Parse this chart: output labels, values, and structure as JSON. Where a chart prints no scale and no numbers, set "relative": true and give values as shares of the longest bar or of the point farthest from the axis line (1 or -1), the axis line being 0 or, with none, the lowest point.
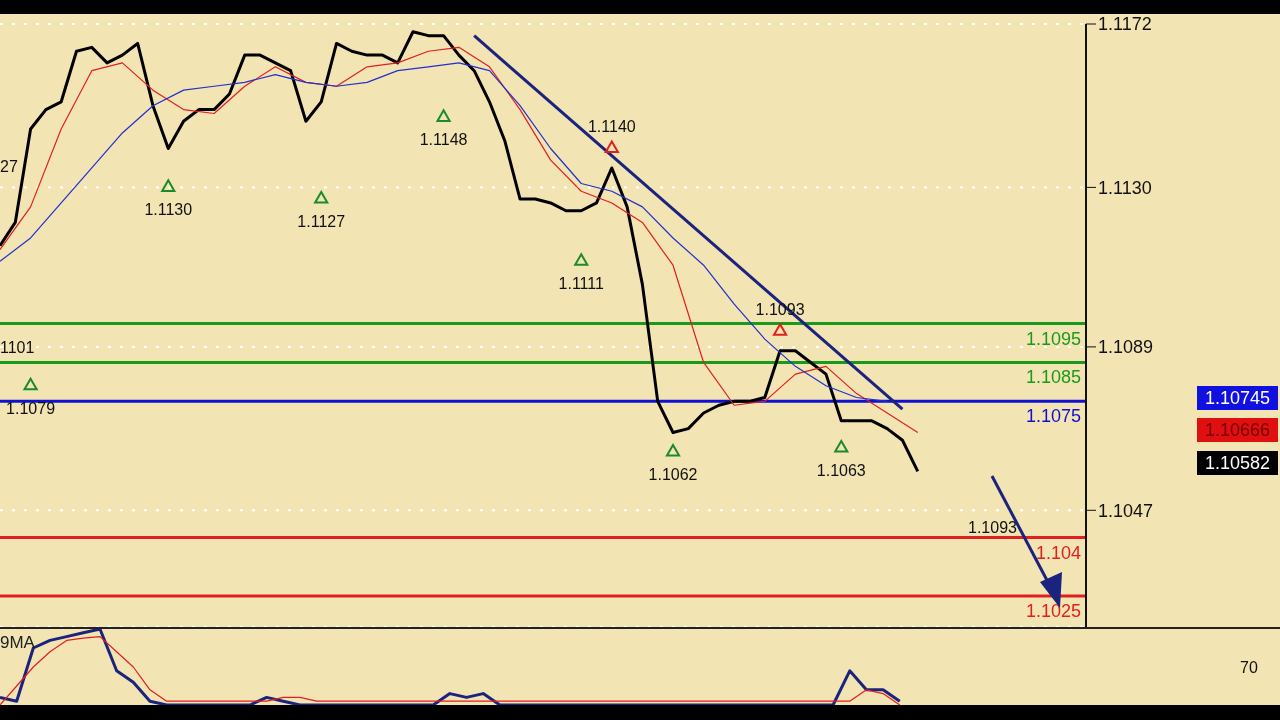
{
  "chart_data": [
    {
      "type": "line",
      "categories": [
        null,
        null,
        null,
        null,
        null,
        null,
        null,
        null,
        null,
        null,
        null,
        null,
        null,
        null,
        null,
        null,
        null,
        null,
        null,
        null,
        null,
        null,
        null,
        null,
        null,
        null,
        null,
        null,
        null,
        null,
        null,
        null,
        null,
        null,
        null,
        null,
        null,
        null,
        null,
        null,
        null,
        null,
        null,
        null,
        null,
        null,
        null,
        null,
        null,
        null,
        null,
        null,
        null,
        null,
        null,
        null,
        null,
        null,
        null,
        null,
        null,
        null,
        null,
        null,
        null,
        null,
        null,
        null,
        null,
        null,
        null,
        null
      ],
      "ylim": [
        1.1017,
        1.1172
      ],
      "yticks": [
        1.1172,
        {
          "value": 1.113,
          "label": "1.1130"
        },
        1.1089,
        1.1047
      ],
      "grid": "y",
      "legend": false,
      "tick_labels": "y",
      "series": [
        {
          "color": "#000000",
          "values": [
            1.1115,
            1.1121,
            1.1145,
            1.115,
            1.1152,
            1.1165,
            1.1166,
            1.1162,
            1.1164,
            1.1167,
            1.1151,
            1.114,
            1.1147,
            1.115,
            1.115,
            1.1154,
            1.1164,
            1.1164,
            1.1162,
            1.116,
            1.1147,
            1.1152,
            1.1167,
            1.1165,
            1.1164,
            1.1164,
            1.1162,
            1.117,
            1.1169,
            1.1169,
            1.1164,
            1.116,
            1.1152,
            1.1142,
            1.1127,
            1.1127,
            1.1126,
            1.1124,
            1.1124,
            1.1126,
            1.1135,
            1.1125,
            1.1105,
            1.1075,
            1.1067,
            1.1068,
            1.1072,
            1.1074,
            1.1075,
            1.1075,
            1.1076,
            1.1088,
            1.1088,
            1.1085,
            1.1082,
            1.107,
            1.107,
            1.107,
            1.1068,
            1.1065,
            1.1057,
            null,
            null,
            null,
            null,
            null,
            null,
            null,
            null,
            null,
            null,
            null
          ]
        },
        {
          "color": "#e02020",
          "values": [
            1.1114,
            null,
            1.1125,
            null,
            1.1145,
            null,
            1.116,
            null,
            1.1162,
            null,
            1.1155,
            null,
            1.115,
            null,
            1.1149,
            null,
            1.1156,
            null,
            1.1161,
            null,
            1.1157,
            null,
            1.1156,
            null,
            1.1161,
            null,
            1.1162,
            null,
            1.1165,
            null,
            1.1166,
            null,
            1.1161,
            null,
            1.115,
            null,
            1.1137,
            null,
            1.1129,
            null,
            1.1126,
            null,
            1.1121,
            null,
            1.111,
            null,
            1.1085,
            null,
            1.1074,
            null,
            1.1075,
            null,
            1.1082,
            null,
            1.1084,
            null,
            1.1077,
            null,
            1.1072,
            null,
            1.1067,
            null,
            null,
            null,
            null,
            null,
            null,
            null,
            null,
            null,
            null,
            null
          ]
        },
        {
          "color": "#2030d0",
          "values": [
            1.1111,
            null,
            1.1117,
            null,
            1.1126,
            null,
            1.1135,
            null,
            1.1144,
            null,
            1.1151,
            null,
            1.1155,
            null,
            1.1156,
            null,
            1.1157,
            null,
            1.1159,
            null,
            1.1157,
            null,
            1.1156,
            null,
            1.1157,
            null,
            1.116,
            null,
            1.1161,
            null,
            1.1162,
            null,
            1.116,
            null,
            1.1151,
            null,
            1.114,
            null,
            1.1131,
            null,
            1.1129,
            null,
            1.1125,
            null,
            1.1117,
            null,
            1.111,
            null,
            1.11,
            null,
            1.1091,
            null,
            1.1084,
            null,
            1.1079,
            null,
            1.1076,
            null,
            1.1075,
            null,
            null,
            null,
            null,
            null,
            null,
            null,
            null,
            null,
            null,
            null,
            null,
            null
          ]
        },
        {
          "color": "#1a237e",
          "values": [
            null,
            null,
            null,
            null,
            null,
            null,
            null,
            null,
            null,
            null,
            null,
            null,
            null,
            null,
            null,
            null,
            null,
            null,
            null,
            null,
            null,
            null,
            null,
            null,
            null,
            null,
            null,
            null,
            null,
            null,
            null,
            1.1169,
            null,
            null,
            null,
            null,
            null,
            null,
            null,
            null,
            null,
            null,
            null,
            null,
            null,
            null,
            null,
            null,
            null,
            null,
            null,
            null,
            null,
            null,
            null,
            null,
            null,
            null,
            null,
            1.1073,
            null,
            null,
            null,
            null,
            null,
            null,
            null,
            null,
            null,
            null,
            null,
            null
          ]
        },
        {
          "type": "scatter",
          "marker": "triangle",
          "color": "#1b8a2a",
          "values": [
            null,
            null,
            1.1079,
            null,
            null,
            null,
            null,
            null,
            null,
            null,
            null,
            1.113,
            null,
            null,
            null,
            null,
            null,
            null,
            null,
            null,
            null,
            1.1127,
            null,
            null,
            null,
            null,
            null,
            null,
            null,
            1.1148,
            null,
            null,
            null,
            null,
            null,
            null,
            null,
            null,
            1.1111,
            null,
            null,
            null,
            null,
            null,
            1.1062,
            null,
            null,
            null,
            null,
            null,
            null,
            null,
            null,
            null,
            null,
            1.1063,
            null,
            null,
            null,
            null,
            null,
            null,
            null,
            null,
            null,
            null,
            null,
            null,
            null,
            null,
            null,
            null
          ],
          "value_labels": [
            null,
            null,
            "1.1079",
            null,
            null,
            null,
            null,
            null,
            null,
            null,
            null,
            "1.1130",
            null,
            null,
            null,
            null,
            null,
            null,
            null,
            null,
            null,
            "1.1127",
            null,
            null,
            null,
            null,
            null,
            null,
            null,
            "1.1148",
            null,
            null,
            null,
            null,
            null,
            null,
            null,
            null,
            "1.1111",
            null,
            null,
            null,
            null,
            null,
            "1.1062",
            null,
            null,
            null,
            null,
            null,
            null,
            null,
            null,
            null,
            null,
            "1.1063",
            null,
            null,
            null,
            null,
            null,
            null,
            null,
            null,
            null,
            null,
            null,
            null,
            null,
            null,
            null,
            null
          ]
        },
        {
          "type": "scatter",
          "marker": "triangle",
          "color": "#e02020",
          "values": [
            null,
            null,
            null,
            null,
            null,
            null,
            null,
            null,
            null,
            null,
            null,
            null,
            null,
            null,
            null,
            null,
            null,
            null,
            null,
            null,
            null,
            null,
            null,
            null,
            null,
            null,
            null,
            null,
            null,
            null,
            null,
            null,
            null,
            null,
            null,
            null,
            null,
            null,
            null,
            null,
            1.114,
            null,
            null,
            null,
            null,
            null,
            null,
            null,
            null,
            null,
            null,
            1.1093,
            null,
            null,
            null,
            null,
            null,
            null,
            null,
            null,
            null,
            null,
            null,
            null,
            null,
            null,
            null,
            null,
            null,
            null,
            null,
            null
          ],
          "value_labels": [
            null,
            null,
            null,
            null,
            null,
            null,
            null,
            null,
            null,
            null,
            null,
            null,
            null,
            null,
            null,
            null,
            null,
            null,
            null,
            null,
            null,
            null,
            null,
            null,
            null,
            null,
            null,
            null,
            null,
            null,
            null,
            null,
            null,
            null,
            null,
            null,
            null,
            null,
            null,
            null,
            "1.1140",
            null,
            null,
            null,
            null,
            null,
            null,
            null,
            null,
            null,
            null,
            "1.1093",
            null,
            null,
            null,
            null,
            null,
            null,
            null,
            null,
            null,
            null,
            null,
            null,
            null,
            null,
            null,
            null,
            null,
            null,
            null,
            null
          ]
        }
      ],
      "ref_lines": [
        {
          "axis": "y",
          "value": 1.1095,
          "label": "1.1095",
          "color": "#1a9a1a"
        },
        {
          "axis": "y",
          "value": 1.1085,
          "label": "1.1085",
          "color": "#1a9a1a"
        },
        {
          "axis": "y",
          "value": 1.1075,
          "label": "1.1075",
          "color": "#1010d0"
        },
        {
          "axis": "y",
          "value": 1.104,
          "label": "1.104",
          "color": "#e02020"
        },
        {
          "axis": "y",
          "value": 1.1025,
          "label": "1.1025",
          "color": "#e02020"
        }
      ],
      "annotations": [
        "1.1093",
        "1101",
        "27",
        "1.10745",
        "1.10666",
        "1.10582"
      ]
    },
    {
      "type": "line",
      "title": "9MA",
      "relative": true,
      "legend": false,
      "tick_labels": false,
      "categories": [
        null,
        null,
        null,
        null,
        null,
        null,
        null,
        null,
        null,
        null,
        null,
        null,
        null,
        null,
        null,
        null,
        null,
        null,
        null,
        null,
        null,
        null,
        null,
        null,
        null,
        null,
        null,
        null,
        null,
        null,
        null,
        null,
        null,
        null,
        null,
        null,
        null,
        null,
        null,
        null,
        null,
        null,
        null,
        null,
        null,
        null,
        null,
        null,
        null,
        null,
        null,
        null,
        null,
        null,
        null,
        null,
        null,
        null,
        null,
        null,
        null,
        null,
        null,
        null,
        null,
        null,
        null,
        null,
        null,
        null,
        null,
        null
      ],
      "series": [
        {
          "color": "#1a237e",
          "values": [
            0.1,
            0.05,
            0.75,
            0.85,
            0.9,
            0.95,
            1,
            0.45,
            0.3,
            0.05,
            0,
            0,
            0,
            0,
            0,
            0,
            0.1,
            0.05,
            0,
            0,
            0,
            0,
            0,
            0,
            0,
            0,
            0,
            0.15,
            0.1,
            0.15,
            0,
            0,
            0,
            0,
            0,
            0,
            0,
            0,
            0,
            0,
            0,
            0,
            0,
            0,
            0,
            0,
            0,
            0,
            0,
            0,
            0,
            0.45,
            0.2,
            0.2,
            0.05,
            null,
            null,
            null,
            null,
            null,
            null,
            null,
            null,
            null,
            null,
            null,
            null,
            null,
            null,
            null,
            null,
            null
          ]
        },
        {
          "color": "#e02020",
          "values": [
            0,
            0.25,
            0.5,
            0.7,
            0.85,
            0.88,
            0.9,
            0.7,
            0.5,
            0.2,
            0.05,
            0.05,
            0.05,
            0.05,
            0.05,
            0.05,
            0.05,
            0.1,
            0.1,
            0.05,
            0.05,
            0.05,
            0.05,
            0.05,
            0.05,
            0.05,
            0.05,
            0.05,
            0.05,
            0.05,
            0.05,
            0.05,
            0.05,
            0.05,
            0.05,
            0.05,
            0.05,
            0.05,
            0.05,
            0.05,
            0.05,
            0.05,
            0.05,
            0.05,
            0.05,
            0.05,
            0.05,
            0.05,
            0.05,
            0.05,
            0.05,
            0.05,
            0.2,
            0.15,
            0,
            null,
            null,
            null,
            null,
            null,
            null,
            null,
            null,
            null,
            null,
            null,
            null,
            null,
            null,
            null,
            null,
            null
          ]
        }
      ],
      "annotations": [
        "70"
      ]
    }
  ]
}
